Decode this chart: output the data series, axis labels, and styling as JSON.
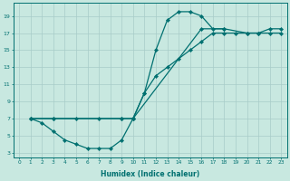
{
  "xlabel": "Humidex (Indice chaleur)",
  "xlim": [
    -0.5,
    23.5
  ],
  "ylim": [
    2.5,
    20.5
  ],
  "xticks": [
    0,
    1,
    2,
    3,
    4,
    5,
    6,
    7,
    8,
    9,
    10,
    11,
    12,
    13,
    14,
    15,
    16,
    17,
    18,
    19,
    20,
    21,
    22,
    23
  ],
  "yticks": [
    3,
    5,
    7,
    9,
    11,
    13,
    15,
    17,
    19
  ],
  "bg_color": "#c8e8e0",
  "line_color": "#007070",
  "grid_color": "#a8ccc8",
  "lines": [
    {
      "x": [
        1,
        2,
        3,
        4,
        5,
        6,
        7,
        8,
        9,
        10,
        11,
        12,
        13,
        14,
        15,
        16,
        17,
        18
      ],
      "y": [
        7,
        6.5,
        5.5,
        4.5,
        4.0,
        3.5,
        3.5,
        3.5,
        4.5,
        7.0,
        10.0,
        15.0,
        18.5,
        19.5,
        19.5,
        19.0,
        17.5,
        17.5
      ]
    },
    {
      "x": [
        1,
        3,
        5,
        7,
        9,
        10,
        11,
        12,
        13,
        14,
        15,
        16,
        17,
        18,
        19,
        20,
        21,
        22,
        23
      ],
      "y": [
        7,
        7,
        7,
        7,
        7,
        7,
        10,
        12,
        13,
        14,
        15,
        16,
        17,
        17,
        17,
        17,
        17,
        17,
        17
      ]
    },
    {
      "x": [
        1,
        3,
        9,
        10,
        16,
        18,
        20,
        21,
        22,
        23
      ],
      "y": [
        7,
        7,
        7,
        7,
        17.5,
        17.5,
        17,
        17,
        17.5,
        17.5
      ]
    }
  ]
}
